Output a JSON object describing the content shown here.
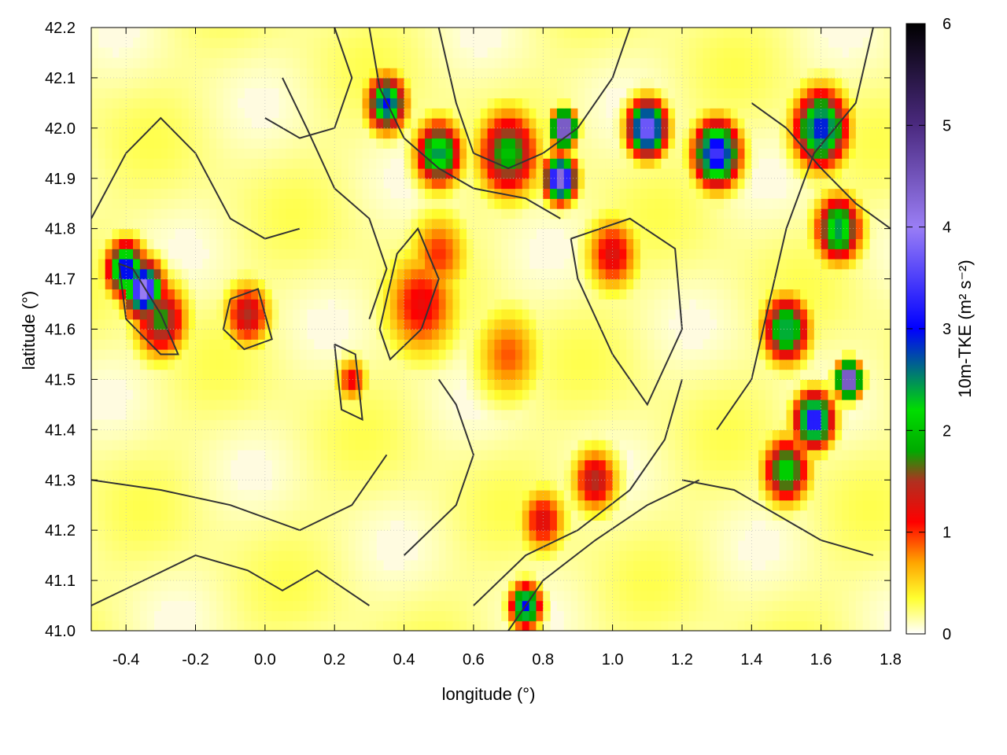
{
  "chart_data": {
    "type": "heatmap",
    "title": "",
    "xlabel": "longitude (°)",
    "ylabel": "latitude (°)",
    "xlim": [
      -0.5,
      1.8
    ],
    "ylim": [
      41.0,
      42.2
    ],
    "x_ticks": [
      -0.4,
      -0.2,
      0.0,
      0.2,
      0.4,
      0.6,
      0.8,
      1.0,
      1.2,
      1.4,
      1.6,
      1.8
    ],
    "x_tick_labels": [
      "-0.4",
      "-0.2",
      "0.0",
      "0.2",
      "0.4",
      "0.6",
      "0.8",
      "1.0",
      "1.2",
      "1.4",
      "1.6",
      "1.8"
    ],
    "y_ticks": [
      41.0,
      41.1,
      41.2,
      41.3,
      41.4,
      41.5,
      41.6,
      41.7,
      41.8,
      41.9,
      42.0,
      42.1,
      42.2
    ],
    "y_tick_labels": [
      "41.0",
      "41.1",
      "41.2",
      "41.3",
      "41.4",
      "41.5",
      "41.6",
      "41.7",
      "41.8",
      "41.9",
      "42.0",
      "42.1",
      "42.2"
    ],
    "grid": true,
    "colorbar": {
      "label": "10m-TKE (m² s⁻²)",
      "range": [
        0,
        6
      ],
      "ticks": [
        0,
        1,
        2,
        3,
        4,
        5,
        6
      ],
      "tick_labels": [
        "0",
        "1",
        "2",
        "3",
        "4",
        "5",
        "6"
      ],
      "colors": [
        {
          "v": 0.0,
          "c": "#ffffff"
        },
        {
          "v": 0.35,
          "c": "#ffff30"
        },
        {
          "v": 0.7,
          "c": "#ffa500"
        },
        {
          "v": 1.1,
          "c": "#ff0000"
        },
        {
          "v": 1.5,
          "c": "#b03020"
        },
        {
          "v": 1.8,
          "c": "#00aa00"
        },
        {
          "v": 2.2,
          "c": "#00dd00"
        },
        {
          "v": 3.0,
          "c": "#0000ff"
        },
        {
          "v": 4.0,
          "c": "#9a7ef5"
        },
        {
          "v": 5.0,
          "c": "#4b2a80"
        },
        {
          "v": 6.0,
          "c": "#000000"
        }
      ]
    },
    "hotspots": [
      {
        "x": -0.35,
        "y": 41.68,
        "v": 4.2,
        "r": 0.05
      },
      {
        "x": -0.4,
        "y": 41.72,
        "v": 3.2,
        "r": 0.05
      },
      {
        "x": -0.3,
        "y": 41.62,
        "v": 1.8,
        "r": 0.07
      },
      {
        "x": -0.05,
        "y": 41.63,
        "v": 1.5,
        "r": 0.06
      },
      {
        "x": 0.45,
        "y": 41.65,
        "v": 1.2,
        "r": 0.1
      },
      {
        "x": 0.5,
        "y": 41.75,
        "v": 1.0,
        "r": 0.08
      },
      {
        "x": 1.0,
        "y": 41.75,
        "v": 1.3,
        "r": 0.07
      },
      {
        "x": 0.86,
        "y": 42.0,
        "v": 5.5,
        "r": 0.03
      },
      {
        "x": 0.85,
        "y": 41.9,
        "v": 4.5,
        "r": 0.04
      },
      {
        "x": 0.7,
        "y": 41.95,
        "v": 2.0,
        "r": 0.08
      },
      {
        "x": 0.5,
        "y": 41.95,
        "v": 2.5,
        "r": 0.06
      },
      {
        "x": 0.35,
        "y": 42.05,
        "v": 3.0,
        "r": 0.05
      },
      {
        "x": 1.1,
        "y": 42.0,
        "v": 4.0,
        "r": 0.05
      },
      {
        "x": 1.3,
        "y": 41.95,
        "v": 3.5,
        "r": 0.06
      },
      {
        "x": 1.6,
        "y": 42.0,
        "v": 3.0,
        "r": 0.07
      },
      {
        "x": 1.65,
        "y": 41.8,
        "v": 2.5,
        "r": 0.06
      },
      {
        "x": 1.5,
        "y": 41.6,
        "v": 2.5,
        "r": 0.06
      },
      {
        "x": 1.68,
        "y": 41.5,
        "v": 5.5,
        "r": 0.03
      },
      {
        "x": 1.58,
        "y": 41.42,
        "v": 3.5,
        "r": 0.05
      },
      {
        "x": 1.5,
        "y": 41.32,
        "v": 2.2,
        "r": 0.06
      },
      {
        "x": 0.95,
        "y": 41.3,
        "v": 1.5,
        "r": 0.06
      },
      {
        "x": 0.8,
        "y": 41.22,
        "v": 1.3,
        "r": 0.06
      },
      {
        "x": 0.75,
        "y": 41.05,
        "v": 3.0,
        "r": 0.04
      },
      {
        "x": 0.25,
        "y": 41.5,
        "v": 1.2,
        "r": 0.04
      },
      {
        "x": 0.7,
        "y": 41.55,
        "v": 0.9,
        "r": 0.09
      }
    ],
    "contours": [
      [
        [
          -0.4,
          41.62
        ],
        [
          -0.3,
          41.55
        ],
        [
          -0.25,
          41.55
        ],
        [
          -0.3,
          41.63
        ],
        [
          -0.38,
          41.72
        ],
        [
          -0.42,
          41.73
        ],
        [
          -0.4,
          41.62
        ]
      ],
      [
        [
          -0.1,
          41.66
        ],
        [
          -0.02,
          41.68
        ],
        [
          0.02,
          41.58
        ],
        [
          -0.06,
          41.56
        ],
        [
          -0.12,
          41.6
        ],
        [
          -0.1,
          41.66
        ]
      ],
      [
        [
          0.33,
          41.6
        ],
        [
          0.38,
          41.75
        ],
        [
          0.44,
          41.8
        ],
        [
          0.5,
          41.7
        ],
        [
          0.45,
          41.6
        ],
        [
          0.36,
          41.54
        ],
        [
          0.33,
          41.6
        ]
      ],
      [
        [
          0.2,
          41.57
        ],
        [
          0.26,
          41.55
        ],
        [
          0.28,
          41.42
        ],
        [
          0.22,
          41.44
        ],
        [
          0.2,
          41.57
        ]
      ],
      [
        [
          0.88,
          41.78
        ],
        [
          1.05,
          41.82
        ],
        [
          1.18,
          41.76
        ],
        [
          1.2,
          41.6
        ],
        [
          1.1,
          41.45
        ],
        [
          1.0,
          41.55
        ],
        [
          0.9,
          41.7
        ],
        [
          0.88,
          41.78
        ]
      ],
      [
        [
          -0.5,
          41.82
        ],
        [
          -0.4,
          41.95
        ],
        [
          -0.3,
          42.02
        ],
        [
          -0.2,
          41.95
        ],
        [
          -0.1,
          41.82
        ],
        [
          0.0,
          41.78
        ],
        [
          0.1,
          41.8
        ]
      ],
      [
        [
          -0.5,
          41.3
        ],
        [
          -0.3,
          41.28
        ],
        [
          -0.1,
          41.25
        ],
        [
          0.1,
          41.2
        ],
        [
          0.25,
          41.25
        ],
        [
          0.35,
          41.35
        ]
      ],
      [
        [
          0.4,
          41.15
        ],
        [
          0.55,
          41.25
        ],
        [
          0.6,
          41.35
        ],
        [
          0.55,
          41.45
        ],
        [
          0.5,
          41.5
        ]
      ],
      [
        [
          0.6,
          41.05
        ],
        [
          0.75,
          41.15
        ],
        [
          0.9,
          41.2
        ],
        [
          1.05,
          41.28
        ],
        [
          1.15,
          41.38
        ],
        [
          1.2,
          41.5
        ]
      ],
      [
        [
          0.7,
          41.0
        ],
        [
          0.8,
          41.1
        ],
        [
          0.95,
          41.18
        ],
        [
          1.1,
          41.25
        ],
        [
          1.25,
          41.3
        ]
      ],
      [
        [
          1.3,
          41.4
        ],
        [
          1.4,
          41.5
        ],
        [
          1.45,
          41.65
        ],
        [
          1.5,
          41.8
        ],
        [
          1.58,
          41.95
        ],
        [
          1.7,
          42.05
        ],
        [
          1.75,
          42.2
        ]
      ],
      [
        [
          1.2,
          41.3
        ],
        [
          1.35,
          41.28
        ],
        [
          1.5,
          41.22
        ],
        [
          1.6,
          41.18
        ],
        [
          1.75,
          41.15
        ]
      ],
      [
        [
          0.5,
          42.2
        ],
        [
          0.55,
          42.05
        ],
        [
          0.6,
          41.95
        ],
        [
          0.7,
          41.92
        ],
        [
          0.8,
          41.95
        ],
        [
          0.9,
          42.0
        ],
        [
          1.0,
          42.1
        ],
        [
          1.05,
          42.2
        ]
      ],
      [
        [
          0.3,
          42.2
        ],
        [
          0.33,
          42.08
        ],
        [
          0.4,
          41.98
        ],
        [
          0.5,
          41.92
        ],
        [
          0.6,
          41.88
        ],
        [
          0.75,
          41.86
        ],
        [
          0.85,
          41.82
        ]
      ],
      [
        [
          -0.5,
          41.05
        ],
        [
          -0.35,
          41.1
        ],
        [
          -0.2,
          41.15
        ],
        [
          -0.05,
          41.12
        ],
        [
          0.05,
          41.08
        ],
        [
          0.15,
          41.12
        ],
        [
          0.3,
          41.05
        ]
      ],
      [
        [
          0.05,
          42.1
        ],
        [
          0.12,
          42.0
        ],
        [
          0.2,
          41.88
        ],
        [
          0.3,
          41.82
        ],
        [
          0.35,
          41.72
        ],
        [
          0.3,
          41.62
        ]
      ],
      [
        [
          1.4,
          42.05
        ],
        [
          1.5,
          42.0
        ],
        [
          1.6,
          41.92
        ],
        [
          1.7,
          41.85
        ],
        [
          1.8,
          41.8
        ]
      ],
      [
        [
          0.2,
          42.2
        ],
        [
          0.25,
          42.1
        ],
        [
          0.2,
          42.0
        ],
        [
          0.1,
          41.98
        ],
        [
          0.0,
          42.02
        ]
      ]
    ]
  }
}
